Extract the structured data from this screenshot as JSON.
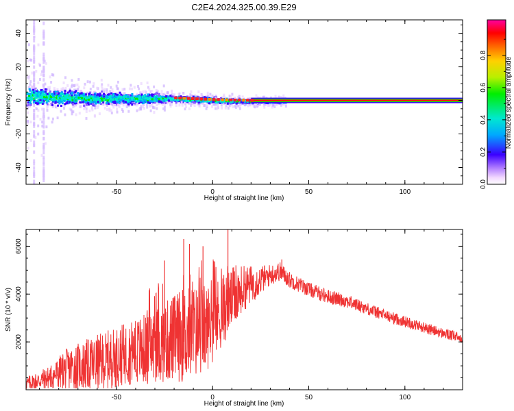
{
  "title": "C2E4.2024.325.00.39.E29",
  "colors": {
    "signal": "#ef3333",
    "axis": "#000000"
  },
  "chart_data": [
    {
      "type": "heatmap",
      "xlabel": "Height of straight line (km)",
      "ylabel": "Frequency (Hz)",
      "xlim": [
        -97,
        130
      ],
      "ylim": [
        -50,
        48
      ],
      "x_ticks": [
        "-50",
        "0",
        "50",
        "100"
      ],
      "y_ticks": [
        "-40",
        "-20",
        "0",
        "20",
        "40"
      ],
      "colorbar": {
        "label": "Normalized spectral amplitude",
        "range": [
          0,
          1
        ],
        "ticks": [
          "0.0",
          "0.2",
          "0.4",
          "0.6",
          "0.8"
        ],
        "colormap": "rainbow (white-magenta-blue-cyan-green-yellow-orange-red-magenta)"
      },
      "ridge": {
        "description": "peak amplitude ridge near 0 Hz",
        "points": [
          [
            -95,
            3
          ],
          [
            -80,
            2
          ],
          [
            -60,
            1.5
          ],
          [
            -40,
            1.5
          ],
          [
            -20,
            1.5
          ],
          [
            0,
            0.5
          ],
          [
            20,
            0
          ],
          [
            130,
            0
          ]
        ]
      },
      "scatter_band_halfwidth_hz": [
        [
          -95,
          10
        ],
        [
          -60,
          6
        ],
        [
          -30,
          5
        ],
        [
          -20,
          3
        ],
        [
          0,
          3
        ],
        [
          20,
          2
        ],
        [
          35,
          2
        ]
      ]
    },
    {
      "type": "line",
      "xlabel": "Height of straight line (km)",
      "ylabel": "SNR (10 * v/v)",
      "xlim": [
        -97,
        130
      ],
      "ylim": [
        0,
        6700
      ],
      "x_ticks": [
        "-50",
        "0",
        "50",
        "100"
      ],
      "y_ticks": [
        "2000",
        "4000",
        "6000"
      ],
      "envelope": {
        "x": [
          -97,
          -85,
          -75,
          -60,
          -45,
          -35,
          -25,
          -15,
          -10,
          -5,
          0,
          5,
          10,
          15,
          25,
          30,
          35,
          40,
          50,
          60,
          70,
          80,
          90,
          100,
          110,
          120,
          130
        ],
        "mean": [
          250,
          500,
          900,
          1100,
          1500,
          1700,
          2000,
          2300,
          2400,
          2500,
          2800,
          3300,
          3800,
          4200,
          4600,
          4800,
          4950,
          4600,
          4200,
          3900,
          3700,
          3400,
          3100,
          2850,
          2600,
          2350,
          2150
        ],
        "amp": [
          300,
          500,
          900,
          1200,
          1300,
          1500,
          1700,
          2000,
          2000,
          1900,
          1700,
          1500,
          1300,
          1000,
          600,
          450,
          400,
          350,
          300,
          300,
          280,
          260,
          250,
          240,
          230,
          220,
          220
        ]
      },
      "peaks": [
        [
          -15,
          6300
        ],
        [
          -12,
          6100
        ],
        [
          -25,
          5400
        ],
        [
          -5,
          6000
        ],
        [
          8,
          6700
        ],
        [
          36,
          5450
        ]
      ]
    }
  ]
}
